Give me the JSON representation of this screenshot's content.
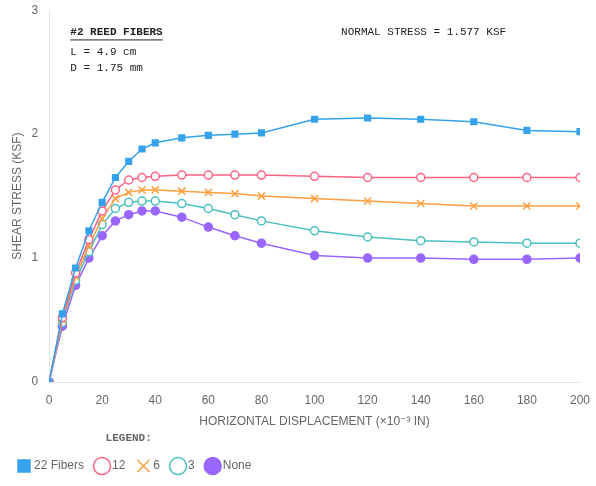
{
  "chart_data": {
    "type": "line",
    "title": "#2 REED FIBERS",
    "annotations": [
      "L = 4.9 cm",
      "D = 1.75 mm",
      "NORMAL STRESS = 1.577 KSF"
    ],
    "xlabel": "HORIZONTAL DISPLACEMENT (×10⁻³ IN)",
    "ylabel": "SHEAR STRESS (KSF)",
    "x": [
      0,
      5,
      10,
      15,
      20,
      25,
      30,
      35,
      40,
      50,
      60,
      70,
      80,
      100,
      120,
      140,
      160,
      180,
      200
    ],
    "series": [
      {
        "name": "22 Fibers",
        "marker": "square",
        "values": [
          0,
          0.55,
          0.92,
          1.22,
          1.45,
          1.65,
          1.78,
          1.88,
          1.93,
          1.97,
          1.99,
          2.0,
          2.01,
          2.12,
          2.13,
          2.12,
          2.1,
          2.03,
          2.02
        ]
      },
      {
        "name": "12",
        "marker": "circle_open",
        "values": [
          0,
          0.52,
          0.88,
          1.15,
          1.38,
          1.55,
          1.63,
          1.65,
          1.66,
          1.67,
          1.67,
          1.67,
          1.67,
          1.66,
          1.65,
          1.65,
          1.65,
          1.65,
          1.65
        ]
      },
      {
        "name": "6",
        "marker": "cross",
        "values": [
          0,
          0.5,
          0.85,
          1.1,
          1.32,
          1.48,
          1.53,
          1.55,
          1.55,
          1.54,
          1.53,
          1.52,
          1.5,
          1.48,
          1.46,
          1.44,
          1.42,
          1.42,
          1.42
        ]
      },
      {
        "name": "3",
        "marker": "circle_open",
        "values": [
          0,
          0.48,
          0.82,
          1.05,
          1.27,
          1.4,
          1.45,
          1.46,
          1.46,
          1.44,
          1.4,
          1.35,
          1.3,
          1.22,
          1.17,
          1.14,
          1.13,
          1.12,
          1.12
        ]
      },
      {
        "name": "None",
        "marker": "circle",
        "values": [
          0,
          0.45,
          0.78,
          1.0,
          1.18,
          1.3,
          1.35,
          1.38,
          1.38,
          1.33,
          1.25,
          1.18,
          1.12,
          1.02,
          1.0,
          1.0,
          0.99,
          0.99,
          1.0
        ]
      }
    ],
    "xlim": [
      0,
      200
    ],
    "xticks": [
      0,
      20,
      40,
      60,
      80,
      100,
      120,
      140,
      160,
      180,
      200
    ],
    "ylim": [
      0,
      3
    ],
    "yticks": [
      0,
      1,
      2,
      3
    ],
    "grid": false,
    "legend": "lower left",
    "legend_title": "LEGEND:"
  }
}
